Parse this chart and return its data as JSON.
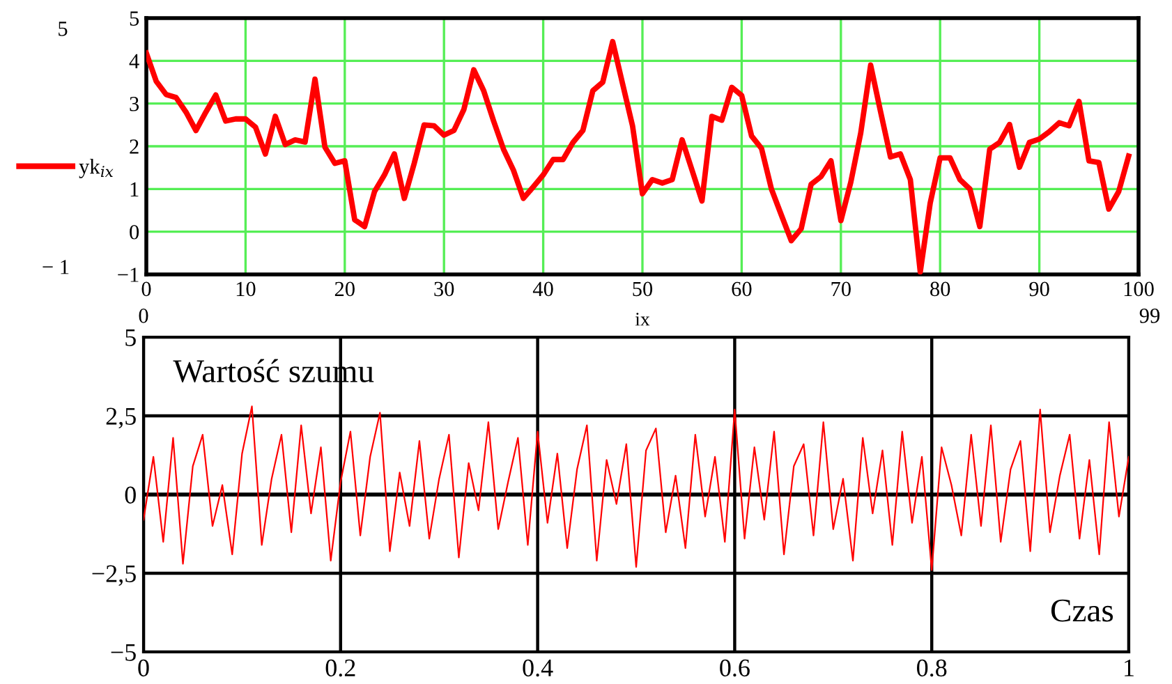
{
  "chart_data": [
    {
      "type": "line",
      "xlabel": "ix",
      "xlim": [
        0,
        100
      ],
      "xticks": [
        0,
        10,
        20,
        30,
        40,
        50,
        60,
        70,
        80,
        90,
        100
      ],
      "ylim": [
        -1,
        5
      ],
      "yticks": [
        {
          "value": -1,
          "label": "−1"
        },
        0,
        1,
        2,
        3,
        4,
        5
      ],
      "grid": true,
      "legend": "left",
      "marker": "none",
      "line_style": "solid",
      "annotations": [
        "5",
        "− 1",
        "0",
        "99"
      ],
      "series": [
        {
          "name": "yk$_{ix}$",
          "color": "#ff0000",
          "x": [
            0,
            1,
            2,
            3,
            4,
            5,
            6,
            7,
            8,
            9,
            10,
            11,
            12,
            13,
            14,
            15,
            16,
            17,
            18,
            19,
            20,
            21,
            22,
            23,
            24,
            25,
            26,
            27,
            28,
            29,
            30,
            31,
            32,
            33,
            34,
            35,
            36,
            37,
            38,
            39,
            40,
            41,
            42,
            43,
            44,
            45,
            46,
            47,
            48,
            49,
            50,
            51,
            52,
            53,
            54,
            55,
            56,
            57,
            58,
            59,
            60,
            61,
            62,
            63,
            64,
            65,
            66,
            67,
            68,
            69,
            70,
            71,
            72,
            73,
            74,
            75,
            76,
            77,
            78,
            79,
            80,
            81,
            82,
            83,
            84,
            85,
            86,
            87,
            88,
            89,
            90,
            91,
            92,
            93,
            94,
            95,
            96,
            97,
            98,
            99
          ],
          "values": [
            4.18,
            3.52,
            3.21,
            3.14,
            2.8,
            2.37,
            2.8,
            3.2,
            2.59,
            2.64,
            2.64,
            2.45,
            1.82,
            2.7,
            2.04,
            2.15,
            2.1,
            3.57,
            1.98,
            1.6,
            1.66,
            0.28,
            0.12,
            0.94,
            1.33,
            1.82,
            0.78,
            1.6,
            2.5,
            2.48,
            2.26,
            2.37,
            2.86,
            3.79,
            3.3,
            2.59,
            1.93,
            1.44,
            0.78,
            1.05,
            1.33,
            1.69,
            1.69,
            2.09,
            2.37,
            3.3,
            3.5,
            4.45,
            3.46,
            2.48,
            0.89,
            1.22,
            1.14,
            1.22,
            2.15,
            1.44,
            0.72,
            2.7,
            2.61,
            3.38,
            3.19,
            2.24,
            1.95,
            1.0,
            0.39,
            -0.21,
            0.07,
            1.11,
            1.29,
            1.66,
            0.26,
            1.16,
            2.31,
            3.9,
            2.81,
            1.75,
            1.82,
            1.22,
            -0.94,
            0.67,
            1.73,
            1.73,
            1.22,
            1.0,
            0.12,
            1.93,
            2.09,
            2.51,
            1.51,
            2.09,
            2.17,
            2.34,
            2.55,
            2.48,
            3.05,
            1.66,
            1.62,
            0.53,
            0.94,
            1.77
          ]
        }
      ]
    },
    {
      "type": "line",
      "xlabel": "Czas",
      "ylabel": "Wartość szumu",
      "xlim": [
        0,
        1
      ],
      "xticks": [
        0,
        0.2,
        0.4,
        0.6,
        0.8,
        1
      ],
      "ylim": [
        -5,
        5
      ],
      "yticks": [
        {
          "value": -5,
          "label": "−5"
        },
        {
          "value": -2.5,
          "label": "−2,5"
        },
        0,
        {
          "value": 2.5,
          "label": "2,5"
        },
        5
      ],
      "grid": true,
      "marker": "none",
      "line_style": "solid",
      "series": [
        {
          "color": "#ff0000",
          "x": [
            0,
            0.01,
            0.02,
            0.03,
            0.04,
            0.05,
            0.06,
            0.07,
            0.08,
            0.09,
            0.1,
            0.11,
            0.12,
            0.13,
            0.14,
            0.15,
            0.16,
            0.17,
            0.18,
            0.19,
            0.2,
            0.21,
            0.22,
            0.23,
            0.24,
            0.25,
            0.26,
            0.27,
            0.28,
            0.29,
            0.3,
            0.31,
            0.32,
            0.33,
            0.34,
            0.35,
            0.36,
            0.37,
            0.38,
            0.39,
            0.4,
            0.41,
            0.42,
            0.43,
            0.44,
            0.45,
            0.46,
            0.47,
            0.48,
            0.49,
            0.5,
            0.51,
            0.52,
            0.53,
            0.54,
            0.55,
            0.56,
            0.57,
            0.58,
            0.59,
            0.6,
            0.61,
            0.62,
            0.63,
            0.64,
            0.65,
            0.66,
            0.67,
            0.68,
            0.69,
            0.7,
            0.71,
            0.72,
            0.73,
            0.74,
            0.75,
            0.76,
            0.77,
            0.78,
            0.79,
            0.8,
            0.81,
            0.82,
            0.83,
            0.84,
            0.85,
            0.86,
            0.87,
            0.88,
            0.89,
            0.9,
            0.91,
            0.92,
            0.93,
            0.94,
            0.95,
            0.96,
            0.97,
            0.98,
            0.99,
            1
          ],
          "values": [
            -0.8,
            1.2,
            -1.5,
            1.8,
            -2.2,
            0.9,
            1.9,
            -1.0,
            0.3,
            -1.9,
            1.3,
            2.8,
            -1.6,
            0.5,
            1.9,
            -1.2,
            2.2,
            -0.6,
            1.5,
            -2.1,
            0.4,
            2.0,
            -1.3,
            1.2,
            2.6,
            -1.8,
            0.7,
            -1.0,
            1.7,
            -1.4,
            0.5,
            1.9,
            -2.0,
            1.0,
            -0.5,
            2.3,
            -1.1,
            0.4,
            1.8,
            -1.6,
            2.0,
            -0.9,
            1.3,
            -1.7,
            0.8,
            2.2,
            -2.1,
            1.1,
            -0.3,
            1.6,
            -2.3,
            1.4,
            2.1,
            -1.2,
            0.6,
            -1.7,
            1.9,
            -0.7,
            1.2,
            -1.5,
            2.7,
            -1.4,
            1.5,
            -0.8,
            2.0,
            -1.9,
            0.9,
            1.6,
            -1.3,
            2.3,
            -1.1,
            0.5,
            -2.1,
            1.8,
            -0.6,
            1.4,
            -1.6,
            2.0,
            -0.9,
            1.2,
            -2.4,
            1.5,
            0.3,
            -1.3,
            1.9,
            -1.0,
            2.2,
            -1.5,
            0.8,
            1.7,
            -1.8,
            2.7,
            -1.2,
            0.6,
            1.9,
            -1.4,
            1.1,
            -1.9,
            2.3,
            -0.7,
            1.2
          ]
        }
      ]
    }
  ]
}
